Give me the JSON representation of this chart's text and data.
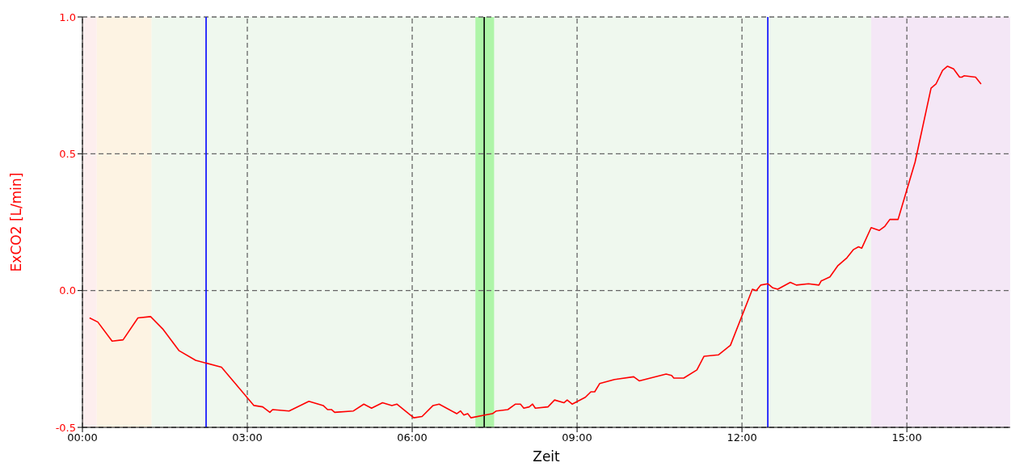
{
  "chart_data": {
    "type": "line",
    "xlabel": "Zeit",
    "ylabel": "ExCO2 [L/min]",
    "xlim": [
      0,
      16.88
    ],
    "xticks": [
      {
        "value": 0,
        "label": "00:00"
      },
      {
        "value": 3,
        "label": "03:00"
      },
      {
        "value": 6,
        "label": "06:00"
      },
      {
        "value": 9,
        "label": "09:00"
      },
      {
        "value": 12,
        "label": "12:00"
      },
      {
        "value": 15,
        "label": "15:00"
      }
    ],
    "ylim": [
      -0.5,
      1.0
    ],
    "yticks": [
      {
        "value": -0.5,
        "label": "-0.5"
      },
      {
        "value": 0,
        "label": "0.0"
      },
      {
        "value": 0.5,
        "label": "0.5"
      },
      {
        "value": 1,
        "label": "1.0"
      }
    ],
    "grid": true,
    "marker": "none",
    "line_style": "solid",
    "bands": [
      {
        "axis": "x",
        "from": 0,
        "to": 0.26,
        "color": "#fdeeee"
      },
      {
        "axis": "x",
        "from": 0.26,
        "to": 1.26,
        "color": "#fdf3e3"
      },
      {
        "axis": "x",
        "from": 1.26,
        "to": 14.35,
        "color": "#eff8ee"
      },
      {
        "axis": "x",
        "from": 7.15,
        "to": 7.49,
        "color": "#aef5a8"
      },
      {
        "axis": "x",
        "from": 14.35,
        "to": 16.88,
        "color": "#f4e7f6"
      }
    ],
    "ref_lines": [
      {
        "axis": "x",
        "value": 2.25,
        "color": "#0000ff"
      },
      {
        "axis": "x",
        "value": 7.31,
        "color": "#000000"
      },
      {
        "axis": "x",
        "value": 12.47,
        "color": "#0000ff"
      }
    ],
    "series": [
      {
        "color": "#ff0000",
        "x": [
          0.13,
          0.28,
          0.54,
          0.74,
          1.01,
          1.24,
          1.46,
          1.76,
          2.06,
          2.53,
          3.12,
          3.28,
          3.41,
          3.46,
          3.76,
          4.12,
          4.38,
          4.46,
          4.53,
          4.59,
          4.93,
          5.12,
          5.26,
          5.46,
          5.63,
          5.72,
          6.03,
          6.18,
          6.38,
          6.49,
          6.81,
          6.88,
          6.94,
          7.01,
          7.07,
          7.32,
          7.46,
          7.53,
          7.74,
          7.88,
          7.97,
          8.03,
          8.13,
          8.19,
          8.24,
          8.47,
          8.59,
          8.76,
          8.82,
          8.91,
          9.15,
          9.25,
          9.32,
          9.41,
          9.68,
          10.03,
          10.13,
          10.62,
          10.72,
          10.76,
          10.94,
          11.18,
          11.31,
          11.57,
          11.79,
          12.19,
          12.26,
          12.34,
          12.47,
          12.56,
          12.65,
          12.88,
          12.99,
          13.21,
          13.4,
          13.44,
          13.6,
          13.74,
          13.91,
          14.03,
          14.12,
          14.18,
          14.35,
          14.5,
          14.6,
          14.69,
          14.84,
          15.15,
          15.44,
          15.53,
          15.65,
          15.74,
          15.85,
          15.96,
          16.0,
          16.04,
          16.25,
          16.35
        ],
        "values": [
          -0.1,
          -0.115,
          -0.185,
          -0.18,
          -0.1,
          -0.095,
          -0.14,
          -0.22,
          -0.255,
          -0.28,
          -0.42,
          -0.425,
          -0.445,
          -0.435,
          -0.44,
          -0.405,
          -0.42,
          -0.435,
          -0.435,
          -0.445,
          -0.44,
          -0.415,
          -0.43,
          -0.41,
          -0.42,
          -0.415,
          -0.465,
          -0.46,
          -0.42,
          -0.415,
          -0.45,
          -0.44,
          -0.455,
          -0.45,
          -0.465,
          -0.455,
          -0.45,
          -0.44,
          -0.435,
          -0.415,
          -0.415,
          -0.43,
          -0.425,
          -0.415,
          -0.43,
          -0.425,
          -0.4,
          -0.41,
          -0.4,
          -0.415,
          -0.39,
          -0.37,
          -0.37,
          -0.34,
          -0.325,
          -0.315,
          -0.33,
          -0.305,
          -0.31,
          -0.32,
          -0.32,
          -0.29,
          -0.24,
          -0.235,
          -0.2,
          0.005,
          0,
          0.02,
          0.025,
          0.01,
          0.005,
          0.03,
          0.02,
          0.025,
          0.02,
          0.035,
          0.05,
          0.09,
          0.12,
          0.15,
          0.16,
          0.155,
          0.23,
          0.22,
          0.235,
          0.26,
          0.26,
          0.47,
          0.74,
          0.755,
          0.805,
          0.82,
          0.81,
          0.78,
          0.78,
          0.785,
          0.78,
          0.755
        ]
      }
    ]
  }
}
